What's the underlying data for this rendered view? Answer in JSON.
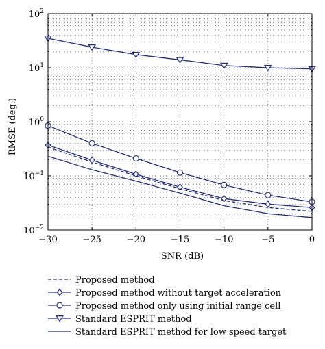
{
  "chart_data": {
    "type": "line",
    "xlabel": "SNR (dB)",
    "ylabel": "RMSE (deg.)",
    "xlim": [
      -30,
      0
    ],
    "ylim": [
      0.01,
      100
    ],
    "y_scale": "log",
    "grid": true,
    "grid_style": "dotted",
    "legend_placement": "below plot",
    "x": [
      -30,
      -25,
      -20,
      -15,
      -10,
      -5,
      0
    ],
    "x_tick_labels": [
      "−30",
      "−25",
      "−20",
      "−15",
      "−10",
      "−5",
      "0"
    ],
    "y_tick_labels": [
      {
        "base": "10",
        "exp": "−2",
        "value": 0.01
      },
      {
        "base": "10",
        "exp": "−1",
        "value": 0.1
      },
      {
        "base": "10",
        "exp": "0",
        "value": 1
      },
      {
        "base": "10",
        "exp": "1",
        "value": 10
      },
      {
        "base": "10",
        "exp": "2",
        "value": 100
      }
    ],
    "series": [
      {
        "name": "Proposed method",
        "style": "dashed",
        "marker": "none",
        "color": "#1f2b8f",
        "values": [
          0.34,
          0.18,
          0.1,
          0.058,
          0.035,
          0.026,
          0.022
        ]
      },
      {
        "name": "Proposed method without target acceleration",
        "style": "solid",
        "marker": "diamond",
        "color": "#1f2b8f",
        "values": [
          0.37,
          0.195,
          0.107,
          0.062,
          0.038,
          0.03,
          0.026
        ]
      },
      {
        "name": "Proposed method only using initial range cell",
        "style": "solid",
        "marker": "circle",
        "color": "#1f2b8f",
        "values": [
          0.85,
          0.4,
          0.21,
          0.115,
          0.068,
          0.044,
          0.033
        ]
      },
      {
        "name": "Standard ESPRIT method",
        "style": "solid",
        "marker": "triangle-down",
        "color": "#1f2b8f",
        "values": [
          35,
          24,
          17.5,
          14,
          11,
          10,
          9.5
        ]
      },
      {
        "name": "Standard ESPRIT method for low speed target",
        "style": "solid",
        "marker": "none",
        "color": "#1f2b8f",
        "values": [
          0.23,
          0.13,
          0.08,
          0.048,
          0.028,
          0.02,
          0.017
        ]
      }
    ]
  }
}
